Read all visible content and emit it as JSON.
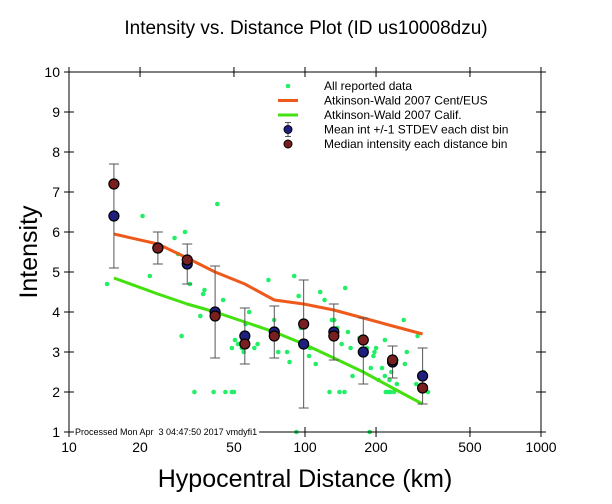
{
  "chart_data": {
    "type": "scatter",
    "title": "Intensity vs. Distance Plot (ID us10008dzu)",
    "xlabel": "Hypocentral Distance (km)",
    "ylabel": "Intensity",
    "xscale": "log",
    "xlim": [
      10,
      1000
    ],
    "ylim": [
      1,
      10
    ],
    "xticks": [
      10,
      20,
      50,
      100,
      200,
      500,
      1000
    ],
    "yticks": [
      1,
      2,
      3,
      4,
      5,
      6,
      7,
      8,
      9,
      10
    ],
    "grid": false,
    "legend_position": "top-right",
    "footnote": "Processed Mon Apr  3 04:47:50 2017 vmdyfi1",
    "colors": {
      "all_data": "#22ee66",
      "cent_eus": "#ee5a1c",
      "calif": "#44e010",
      "mean": "#1f1f80",
      "median": "#7a1f1f",
      "errorbar": "#555555"
    },
    "legend": [
      {
        "key": "all_data",
        "label": "All reported data",
        "marker": "dot"
      },
      {
        "key": "cent_eus",
        "label": "Atkinson-Wald 2007 Cent/EUS",
        "marker": "line"
      },
      {
        "key": "calif",
        "label": "Atkinson-Wald 2007 Calif.",
        "marker": "line"
      },
      {
        "key": "mean",
        "label": "Mean int +/-1 STDEV each dist bin",
        "marker": "circle-errorbar"
      },
      {
        "key": "median",
        "label": "Median intensity each distance bin",
        "marker": "circle"
      }
    ],
    "series": [
      {
        "name": "Atkinson-Wald 2007 Cent/EUS",
        "key": "cent_eus",
        "type": "line",
        "x": [
          15.5,
          23.8,
          31.7,
          41.6,
          55.6,
          74.1,
          98.7,
          132.5,
          176.6,
          235,
          315
        ],
        "y": [
          5.95,
          5.7,
          5.35,
          5.0,
          4.7,
          4.3,
          4.2,
          4.05,
          3.85,
          3.65,
          3.45
        ]
      },
      {
        "name": "Atkinson-Wald 2007 Calif.",
        "key": "calif",
        "type": "line",
        "x": [
          15.5,
          23.8,
          31.7,
          41.6,
          55.6,
          74.1,
          98.7,
          132.5,
          176.6,
          235,
          315
        ],
        "y": [
          4.85,
          4.45,
          4.2,
          4.0,
          3.75,
          3.5,
          3.2,
          2.85,
          2.5,
          2.1,
          1.7
        ]
      },
      {
        "name": "Mean int +/-1 STDEV each dist bin",
        "key": "mean",
        "type": "errorbar",
        "x": [
          15.5,
          23.8,
          31.7,
          41.6,
          55.6,
          74.1,
          98.7,
          132.5,
          176.6,
          235,
          315
        ],
        "y": [
          6.4,
          5.6,
          5.2,
          4.0,
          3.4,
          3.5,
          3.2,
          3.5,
          3.0,
          2.75,
          2.4
        ],
        "err_low": [
          5.1,
          5.2,
          4.7,
          2.85,
          2.7,
          2.85,
          1.6,
          2.8,
          2.2,
          2.35,
          1.7
        ],
        "err_high": [
          7.7,
          6.0,
          5.7,
          5.15,
          4.1,
          4.15,
          4.8,
          4.2,
          3.85,
          3.15,
          3.1
        ]
      },
      {
        "name": "Median intensity each distance bin",
        "key": "median",
        "type": "scatter",
        "x": [
          15.5,
          23.8,
          31.7,
          41.6,
          55.6,
          74.1,
          98.7,
          132.5,
          176.6,
          235,
          315
        ],
        "y": [
          7.2,
          5.6,
          5.3,
          3.9,
          3.2,
          3.4,
          3.7,
          3.4,
          3.3,
          2.8,
          2.1
        ]
      },
      {
        "name": "All reported data",
        "key": "all_data",
        "type": "scatter",
        "points": [
          [
            14.5,
            4.7
          ],
          [
            20.5,
            6.4
          ],
          [
            22,
            4.9
          ],
          [
            28,
            5.85
          ],
          [
            31,
            6.0
          ],
          [
            29,
            5.45
          ],
          [
            32.5,
            4.7
          ],
          [
            36,
            3.9
          ],
          [
            37,
            4.45
          ],
          [
            37.5,
            4.55
          ],
          [
            42.5,
            6.7
          ],
          [
            45,
            4.3
          ],
          [
            30,
            3.4
          ],
          [
            34,
            2.0
          ],
          [
            41,
            2.0
          ],
          [
            46,
            2.0
          ],
          [
            49,
            2.0
          ],
          [
            50,
            2.0
          ],
          [
            50.5,
            3.3
          ],
          [
            49,
            3.1
          ],
          [
            52,
            3.2
          ],
          [
            54,
            3.1
          ],
          [
            55,
            3.0
          ],
          [
            56,
            3.7
          ],
          [
            58,
            4.0
          ],
          [
            63,
            3.2
          ],
          [
            61,
            3.1
          ],
          [
            70,
            4.8
          ],
          [
            74,
            3.8
          ],
          [
            77,
            3.0
          ],
          [
            84,
            3.0
          ],
          [
            90,
            4.9
          ],
          [
            94,
            4.4
          ],
          [
            96,
            3.6
          ],
          [
            86,
            2.75
          ],
          [
            105,
            3.1
          ],
          [
            116,
            4.5
          ],
          [
            92,
            1.0
          ],
          [
            104,
            2.9
          ],
          [
            111,
            2.7
          ],
          [
            121,
            4.3
          ],
          [
            130,
            3.8
          ],
          [
            133,
            3.8
          ],
          [
            137,
            3.6
          ],
          [
            143,
            3.2
          ],
          [
            148,
            4.6
          ],
          [
            152,
            3.5
          ],
          [
            127,
            2.0
          ],
          [
            140,
            2.0
          ],
          [
            147,
            2.0
          ],
          [
            159,
            2.4
          ],
          [
            156,
            3.1
          ],
          [
            170,
            3.35
          ],
          [
            178,
            3.3
          ],
          [
            183,
            3.1
          ],
          [
            190,
            2.6
          ],
          [
            195,
            2.9
          ],
          [
            197,
            3.0
          ],
          [
            200,
            3.1
          ],
          [
            205,
            2.3
          ],
          [
            212,
            2.6
          ],
          [
            218,
            3.3
          ],
          [
            218,
            2.4
          ],
          [
            220,
            2.0
          ],
          [
            226,
            2.0
          ],
          [
            230,
            2.0
          ],
          [
            238,
            2.0
          ],
          [
            244,
            2.8
          ],
          [
            228,
            2.3
          ],
          [
            232,
            2.5
          ],
          [
            245,
            2.2
          ],
          [
            262,
            3.8
          ],
          [
            270,
            3.0
          ],
          [
            296,
            2.2
          ],
          [
            318,
            2.5
          ],
          [
            332,
            2.0
          ],
          [
            188,
            1.0
          ],
          [
            265,
            2.7
          ],
          [
            300,
            3.4
          ]
        ]
      }
    ]
  }
}
